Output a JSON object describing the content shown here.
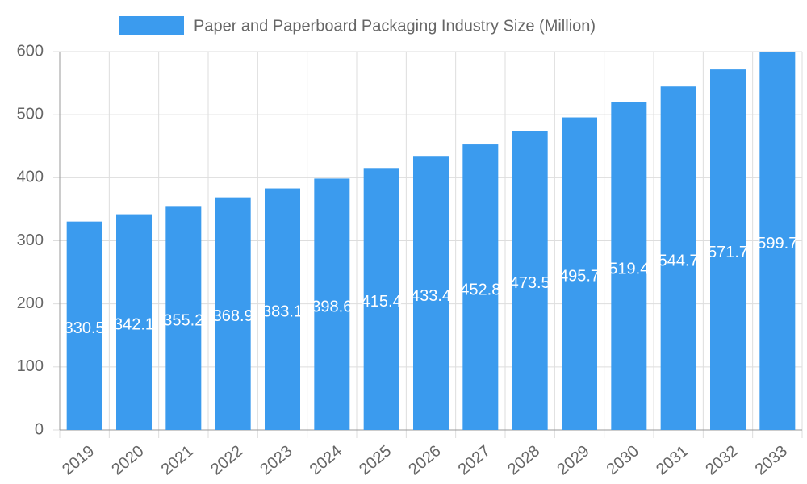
{
  "chart_data": {
    "type": "bar",
    "categories": [
      "2019",
      "2020",
      "2021",
      "2022",
      "2023",
      "2024",
      "2025",
      "2026",
      "2027",
      "2028",
      "2029",
      "2030",
      "2031",
      "2032",
      "2033"
    ],
    "series": [
      {
        "name": "Paper and Paperboard Packaging Industry Size (Million)",
        "color": "#3b9bee",
        "values": [
          330.5,
          342.1,
          355.2,
          368.9,
          383.1,
          398.6,
          415.4,
          433.4,
          452.8,
          473.5,
          495.7,
          519.4,
          544.7,
          571.7,
          599.7
        ]
      }
    ],
    "ylim": [
      0,
      600
    ],
    "yticks": [
      0,
      100,
      200,
      300,
      400,
      500,
      600
    ],
    "grid": true,
    "legend": "top"
  }
}
